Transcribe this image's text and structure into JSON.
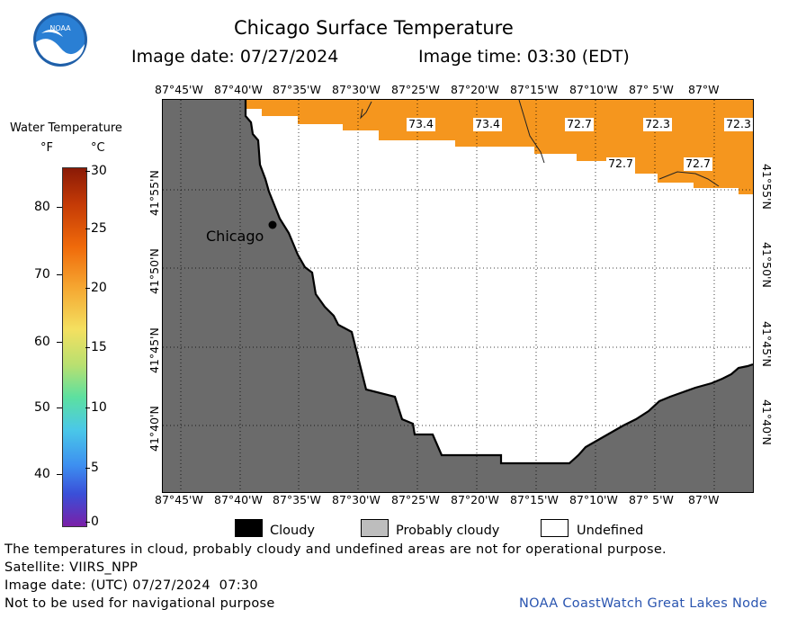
{
  "header": {
    "title": "Chicago Surface Temperature",
    "image_date": "Image date: 07/27/2024",
    "image_time": "Image time: 03:30 (EDT)",
    "logo_text": "NOAA"
  },
  "legend": {
    "title": "Water Temperature",
    "unit_f": "°F",
    "unit_c": "°C",
    "f_ticks": [
      "80",
      "70",
      "60",
      "50",
      "40"
    ],
    "c_ticks": [
      "30",
      "25",
      "20",
      "15",
      "10",
      "5",
      "0"
    ]
  },
  "map": {
    "lon_labels": [
      "87°45'W",
      "87°40'W",
      "87°35'W",
      "87°30'W",
      "87°25'W",
      "87°20'W",
      "87°15'W",
      "87°10'W",
      "87° 5'W",
      "87°W"
    ],
    "lat_labels": [
      "41°55'N",
      "41°50'N",
      "41°45'N",
      "41°40'N"
    ],
    "city_label": "Chicago",
    "water_color": "#f5961e",
    "land_color": "#6b6b6b",
    "isotherm_labels": [
      "73.4",
      "73.4",
      "72.7",
      "72.3",
      "72.3",
      "72.7",
      "72.7"
    ]
  },
  "key": {
    "cloudy": "Cloudy",
    "probably_cloudy": "Probably cloudy",
    "undefined": "Undefined"
  },
  "footer": {
    "note": "The temperatures in cloud, probably cloudy and undefined areas are not for operational purpose.",
    "satellite": "Satellite: VIIRS_NPP",
    "utc_date": "Image date: (UTC) 07/27/2024  07:30",
    "nav_warning": "Not to be used for navigational purpose",
    "credit": "NOAA CoastWatch Great Lakes Node"
  }
}
